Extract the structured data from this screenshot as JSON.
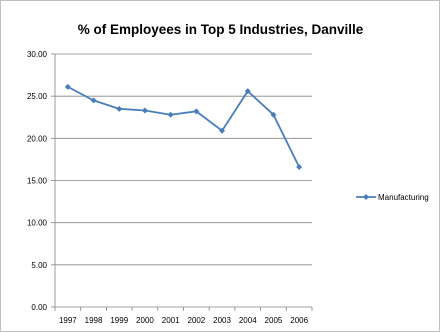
{
  "chart_data": {
    "type": "line",
    "title": "% of Employees in Top 5 Industries, Danville",
    "xlabel": "",
    "ylabel": "",
    "categories": [
      "1997",
      "1998",
      "1999",
      "2000",
      "2001",
      "2002",
      "2003",
      "2004",
      "2005",
      "2006"
    ],
    "series": [
      {
        "name": "Manufacturing",
        "values": [
          26.1,
          24.5,
          23.5,
          23.3,
          22.8,
          23.2,
          20.9,
          25.6,
          22.8,
          16.6
        ]
      }
    ],
    "ylim": [
      0,
      30
    ],
    "ytick_labels": [
      "0.00",
      "5.00",
      "10.00",
      "15.00",
      "20.00",
      "25.00",
      "30.00"
    ],
    "grid": true,
    "legend_position": "right",
    "colors": {
      "series": "#4a7ebb",
      "grid": "#868686",
      "axis": "#868686"
    }
  }
}
